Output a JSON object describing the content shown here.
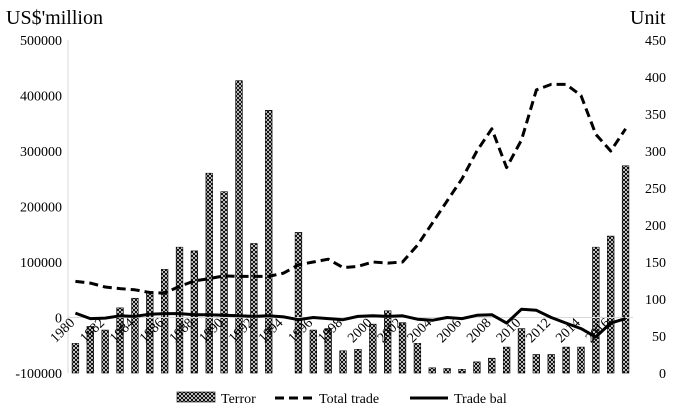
{
  "chart_data": {
    "type": "bar",
    "title": "",
    "left_axis_unit": "US$'million",
    "right_axis_unit": "Unit",
    "left_ylim": [
      -100000,
      500000
    ],
    "right_ylim": [
      0,
      450
    ],
    "left_ticks": [
      -100000,
      0,
      100000,
      200000,
      300000,
      400000,
      500000
    ],
    "right_ticks": [
      0,
      50,
      100,
      150,
      200,
      250,
      300,
      350,
      400,
      450
    ],
    "left_tick_labels": [
      "-100000",
      "0",
      "100000",
      "200000",
      "300000",
      "400000",
      "500000"
    ],
    "right_tick_labels": [
      "0",
      "50",
      "100",
      "150",
      "200",
      "250",
      "300",
      "350",
      "400",
      "450"
    ],
    "x": [
      1980,
      1981,
      1982,
      1983,
      1984,
      1985,
      1986,
      1987,
      1988,
      1989,
      1990,
      1991,
      1992,
      1993,
      1994,
      1995,
      1996,
      1997,
      1998,
      1999,
      2000,
      2001,
      2002,
      2003,
      2004,
      2005,
      2006,
      2007,
      2008,
      2009,
      2010,
      2011,
      2012,
      2013,
      2014,
      2015,
      2016,
      2017
    ],
    "x_tick_labels": [
      "1980",
      "1982",
      "1984",
      "1986",
      "1988",
      "1990",
      "1992",
      "1994",
      "1996",
      "1998",
      "2000",
      "2002",
      "2004",
      "2006",
      "2008",
      "2010",
      "2012",
      "2014",
      "2016"
    ],
    "grid": false,
    "legend_position": "bottom",
    "series": [
      {
        "name": "Terror",
        "type": "bar",
        "axis": "right",
        "pattern": "crosshatch",
        "values": [
          40,
          63,
          58,
          88,
          101,
          110,
          140,
          170,
          165,
          270,
          245,
          395,
          175,
          355,
          0,
          190,
          58,
          60,
          30,
          32,
          66,
          84,
          68,
          40,
          7,
          6,
          5,
          15,
          20,
          35,
          60,
          25,
          25,
          35,
          35,
          170,
          185,
          280
        ]
      },
      {
        "name": "Total trade",
        "type": "line",
        "axis": "left",
        "style": "dashed",
        "values": [
          65000,
          62000,
          55000,
          52000,
          50000,
          45000,
          44000,
          56000,
          66000,
          70000,
          75000,
          74000,
          74000,
          74000,
          80000,
          95000,
          100000,
          105000,
          90000,
          92000,
          100000,
          98000,
          100000,
          130000,
          170000,
          210000,
          250000,
          300000,
          340000,
          270000,
          320000,
          410000,
          420000,
          420000,
          400000,
          330000,
          300000,
          340000
        ]
      },
      {
        "name": "Trade bal",
        "type": "line",
        "axis": "left",
        "style": "solid",
        "values": [
          8000,
          -2000,
          -1000,
          3000,
          2000,
          6000,
          7000,
          7000,
          5000,
          5000,
          4000,
          3000,
          2000,
          3000,
          1000,
          -4000,
          0,
          -2000,
          -4000,
          2000,
          3000,
          2000,
          3000,
          -3000,
          -5000,
          0,
          -2000,
          4000,
          5000,
          -10000,
          15000,
          13000,
          0,
          -10000,
          -20000,
          -35000,
          -10000,
          -2000
        ]
      }
    ]
  }
}
